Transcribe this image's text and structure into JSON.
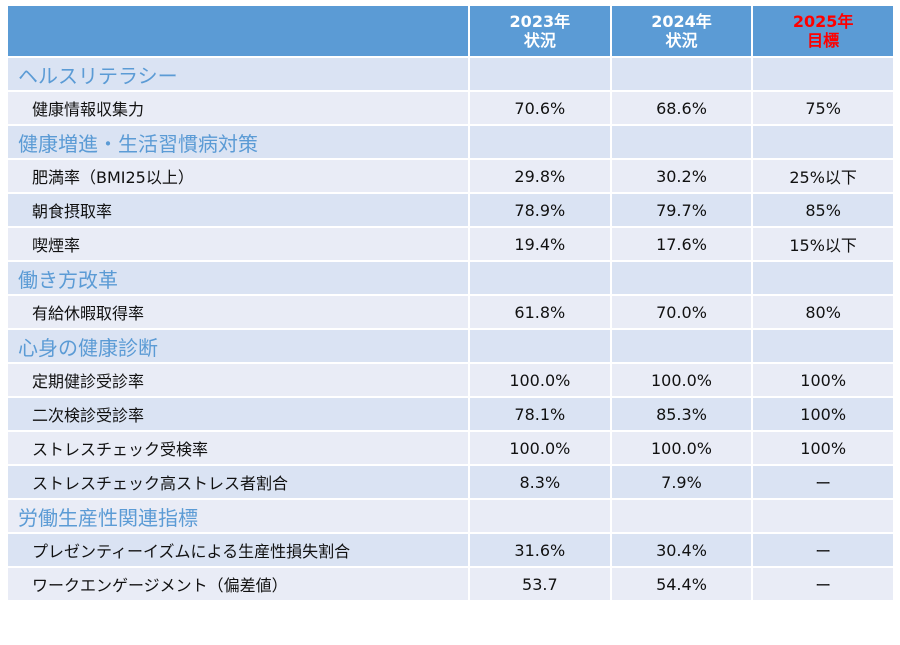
{
  "header": {
    "label": "",
    "col_2023": [
      "2023年",
      "状況"
    ],
    "col_2024": [
      "2024年",
      "状況"
    ],
    "col_2025": [
      "2025年",
      "目標"
    ]
  },
  "colors": {
    "header_bg": "#5b9bd5",
    "target_text": "#ff0000",
    "section_text": "#5b9bd5"
  },
  "rows": [
    {
      "type": "section",
      "label": "ヘルスリテラシー",
      "v2023": "",
      "v2024": "",
      "v2025": ""
    },
    {
      "type": "item",
      "label": "健康情報収集力",
      "v2023": "70.6%",
      "v2024": "68.6%",
      "v2025": "75%"
    },
    {
      "type": "section",
      "label": "健康増進・生活習慣病対策",
      "v2023": "",
      "v2024": "",
      "v2025": ""
    },
    {
      "type": "item",
      "label": "肥満率（BMI25以上）",
      "v2023": "29.8%",
      "v2024": "30.2%",
      "v2025": "25%以下"
    },
    {
      "type": "item",
      "label": "朝食摂取率",
      "v2023": "78.9%",
      "v2024": "79.7%",
      "v2025": "85%"
    },
    {
      "type": "item",
      "label": "喫煙率",
      "v2023": "19.4%",
      "v2024": "17.6%",
      "v2025": "15%以下"
    },
    {
      "type": "section",
      "label": "働き方改革",
      "v2023": "",
      "v2024": "",
      "v2025": ""
    },
    {
      "type": "item",
      "label": "有給休暇取得率",
      "v2023": "61.8%",
      "v2024": "70.0%",
      "v2025": "80%"
    },
    {
      "type": "section",
      "label": "心身の健康診断",
      "v2023": "",
      "v2024": "",
      "v2025": ""
    },
    {
      "type": "item",
      "label": "定期健診受診率",
      "v2023": "100.0%",
      "v2024": "100.0%",
      "v2025": "100%"
    },
    {
      "type": "item",
      "label": "二次検診受診率",
      "v2023": "78.1%",
      "v2024": "85.3%",
      "v2025": "100%"
    },
    {
      "type": "item",
      "label": "ストレスチェック受検率",
      "v2023": "100.0%",
      "v2024": "100.0%",
      "v2025": "100%"
    },
    {
      "type": "item",
      "label": "ストレスチェック高ストレス者割合",
      "v2023": "8.3%",
      "v2024": "7.9%",
      "v2025": "ー"
    },
    {
      "type": "section",
      "label": "労働生産性関連指標",
      "v2023": "",
      "v2024": "",
      "v2025": ""
    },
    {
      "type": "item",
      "label": "プレゼンティーイズムによる生産性損失割合",
      "v2023": "31.6%",
      "v2024": "30.4%",
      "v2025": "ー"
    },
    {
      "type": "item",
      "label": "ワークエンゲージメント（偏差値）",
      "v2023": "53.7",
      "v2024": "54.4%",
      "v2025": "ー"
    }
  ]
}
